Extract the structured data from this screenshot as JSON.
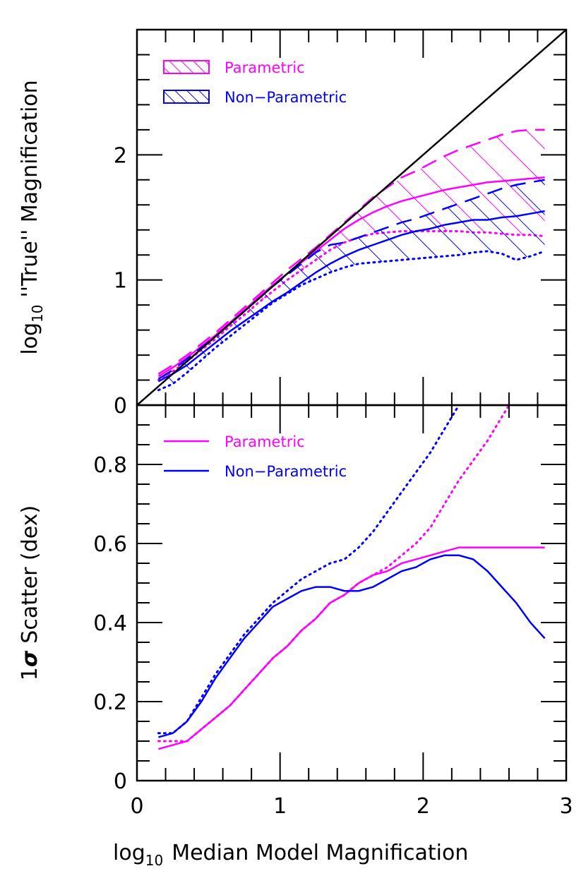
{
  "colors": {
    "parametric": "#ff00ff",
    "non_parametric": "#0000ff",
    "axes": "#000000"
  },
  "chart_data": [
    {
      "id": "top",
      "type": "line",
      "xlim": [
        0,
        3
      ],
      "ylim": [
        0,
        3
      ],
      "xticks": [
        0,
        1,
        2,
        3
      ],
      "yticks": [
        0,
        1,
        2
      ],
      "yticks_labels": [
        "0",
        "1",
        "2"
      ],
      "ylabel_prefix": "log",
      "ylabel_sub": "10",
      "ylabel_rest": "''True'' Magnification",
      "legend": {
        "placement": "top-left",
        "style": "hatched boxes",
        "entries": [
          "Parametric",
          "Non−Parametric"
        ]
      },
      "reference_line": {
        "x": [
          0,
          3
        ],
        "y": [
          0,
          3
        ]
      },
      "series": [
        {
          "name": "Parametric",
          "color": "#ff00ff",
          "x": [
            0.15,
            0.25,
            0.35,
            0.45,
            0.55,
            0.65,
            0.75,
            0.85,
            0.95,
            1.05,
            1.15,
            1.25,
            1.35,
            1.45,
            1.55,
            1.65,
            1.75,
            1.85,
            1.95,
            2.05,
            2.15,
            2.25,
            2.35,
            2.45,
            2.55,
            2.65,
            2.75,
            2.85
          ],
          "upper": [
            0.25,
            0.32,
            0.4,
            0.49,
            0.58,
            0.68,
            0.78,
            0.88,
            0.98,
            1.08,
            1.17,
            1.26,
            1.36,
            1.46,
            1.56,
            1.66,
            1.74,
            1.82,
            1.87,
            1.93,
            1.99,
            2.04,
            2.08,
            2.12,
            2.16,
            2.19,
            2.2,
            2.2
          ],
          "median": [
            0.23,
            0.3,
            0.38,
            0.47,
            0.56,
            0.66,
            0.76,
            0.86,
            0.96,
            1.05,
            1.14,
            1.23,
            1.32,
            1.41,
            1.48,
            1.54,
            1.59,
            1.63,
            1.66,
            1.69,
            1.72,
            1.74,
            1.76,
            1.78,
            1.79,
            1.8,
            1.81,
            1.82
          ],
          "lower": [
            0.2,
            0.27,
            0.35,
            0.44,
            0.53,
            0.63,
            0.72,
            0.82,
            0.91,
            1.0,
            1.08,
            1.16,
            1.24,
            1.3,
            1.34,
            1.37,
            1.38,
            1.39,
            1.39,
            1.39,
            1.39,
            1.39,
            1.38,
            1.38,
            1.37,
            1.36,
            1.36,
            1.35
          ]
        },
        {
          "name": "Non−Parametric",
          "color": "#0000ff",
          "x": [
            0.15,
            0.25,
            0.35,
            0.45,
            0.55,
            0.65,
            0.75,
            0.85,
            0.95,
            1.05,
            1.15,
            1.25,
            1.35,
            1.45,
            1.55,
            1.65,
            1.75,
            1.85,
            1.95,
            2.05,
            2.15,
            2.25,
            2.35,
            2.45,
            2.55,
            2.65,
            2.75,
            2.85
          ],
          "upper": [
            0.21,
            0.28,
            0.37,
            0.46,
            0.55,
            0.65,
            0.75,
            0.85,
            0.95,
            1.04,
            1.13,
            1.22,
            1.28,
            1.3,
            1.34,
            1.38,
            1.42,
            1.46,
            1.49,
            1.53,
            1.57,
            1.61,
            1.65,
            1.69,
            1.73,
            1.76,
            1.78,
            1.8
          ],
          "median": [
            0.19,
            0.25,
            0.32,
            0.41,
            0.5,
            0.59,
            0.67,
            0.75,
            0.83,
            0.9,
            0.98,
            1.06,
            1.13,
            1.19,
            1.24,
            1.28,
            1.32,
            1.36,
            1.39,
            1.41,
            1.44,
            1.46,
            1.48,
            1.48,
            1.5,
            1.51,
            1.53,
            1.55
          ],
          "lower": [
            0.12,
            0.17,
            0.26,
            0.36,
            0.46,
            0.55,
            0.64,
            0.73,
            0.82,
            0.89,
            0.96,
            1.01,
            1.06,
            1.1,
            1.13,
            1.14,
            1.15,
            1.16,
            1.17,
            1.18,
            1.19,
            1.2,
            1.22,
            1.23,
            1.21,
            1.16,
            1.19,
            1.23
          ]
        }
      ]
    },
    {
      "id": "bottom",
      "type": "line",
      "xlim": [
        0,
        3
      ],
      "ylim": [
        0,
        0.95
      ],
      "xticks": [
        0,
        1,
        2,
        3
      ],
      "xticks_labels": [
        "0",
        "1",
        "2",
        "3"
      ],
      "yticks": [
        0,
        0.2,
        0.4,
        0.6,
        0.8
      ],
      "yticks_labels": [
        "0",
        "0.2",
        "0.4",
        "0.6",
        "0.8"
      ],
      "xlabel_prefix": "log",
      "xlabel_sub": "10",
      "xlabel_rest": "Median Model Magnification",
      "ylabel_prefix": "1",
      "ylabel_sigma": "σ",
      "ylabel_rest": "Scatter (dex)",
      "legend": {
        "placement": "top-left",
        "style": "lines",
        "entries": [
          "Parametric",
          "Non−Parametric"
        ]
      },
      "series": [
        {
          "name": "Parametric",
          "style": "solid",
          "color": "#ff00ff",
          "x": [
            0.15,
            0.25,
            0.35,
            0.45,
            0.55,
            0.65,
            0.75,
            0.85,
            0.95,
            1.05,
            1.15,
            1.25,
            1.35,
            1.45,
            1.55,
            1.65,
            1.75,
            1.85,
            1.95,
            2.05,
            2.15,
            2.25,
            2.35,
            2.45,
            2.55,
            2.65,
            2.75,
            2.85
          ],
          "y": [
            0.08,
            0.09,
            0.1,
            0.13,
            0.16,
            0.19,
            0.23,
            0.27,
            0.31,
            0.34,
            0.38,
            0.41,
            0.45,
            0.47,
            0.5,
            0.52,
            0.53,
            0.55,
            0.56,
            0.57,
            0.58,
            0.59,
            0.59,
            0.59,
            0.59,
            0.59,
            0.59,
            0.59
          ]
        },
        {
          "name": "Parametric",
          "style": "dotted",
          "color": "#ff00ff",
          "x": [
            0.15,
            0.25,
            0.35,
            0.45,
            0.55,
            0.65,
            0.75,
            0.85,
            0.95,
            1.05,
            1.15,
            1.25,
            1.35,
            1.45,
            1.55,
            1.65,
            1.75,
            1.85,
            1.95,
            2.05,
            2.15,
            2.25,
            2.35,
            2.45,
            2.55,
            2.6
          ],
          "y": [
            0.1,
            0.1,
            0.1,
            0.13,
            0.16,
            0.19,
            0.23,
            0.27,
            0.31,
            0.34,
            0.38,
            0.41,
            0.45,
            0.47,
            0.5,
            0.52,
            0.54,
            0.57,
            0.6,
            0.64,
            0.7,
            0.76,
            0.81,
            0.86,
            0.92,
            0.95
          ]
        },
        {
          "name": "Non−Parametric",
          "style": "solid",
          "color": "#0000ff",
          "x": [
            0.15,
            0.25,
            0.35,
            0.45,
            0.55,
            0.65,
            0.75,
            0.85,
            0.95,
            1.05,
            1.15,
            1.25,
            1.35,
            1.45,
            1.55,
            1.65,
            1.75,
            1.85,
            1.95,
            2.05,
            2.15,
            2.25,
            2.35,
            2.45,
            2.55,
            2.65,
            2.75,
            2.85
          ],
          "y": [
            0.11,
            0.12,
            0.15,
            0.2,
            0.26,
            0.31,
            0.36,
            0.4,
            0.44,
            0.46,
            0.48,
            0.49,
            0.49,
            0.48,
            0.48,
            0.49,
            0.51,
            0.53,
            0.54,
            0.56,
            0.57,
            0.57,
            0.56,
            0.53,
            0.49,
            0.45,
            0.4,
            0.36
          ]
        },
        {
          "name": "Non−Parametric",
          "style": "dotted",
          "color": "#0000ff",
          "x": [
            0.15,
            0.25,
            0.35,
            0.45,
            0.55,
            0.65,
            0.75,
            0.85,
            0.95,
            1.05,
            1.15,
            1.25,
            1.35,
            1.45,
            1.55,
            1.65,
            1.75,
            1.85,
            1.95,
            2.05,
            2.15,
            2.25
          ],
          "y": [
            0.12,
            0.12,
            0.15,
            0.21,
            0.27,
            0.32,
            0.37,
            0.41,
            0.45,
            0.48,
            0.51,
            0.53,
            0.55,
            0.56,
            0.59,
            0.63,
            0.68,
            0.73,
            0.78,
            0.83,
            0.89,
            0.95
          ]
        }
      ]
    }
  ]
}
